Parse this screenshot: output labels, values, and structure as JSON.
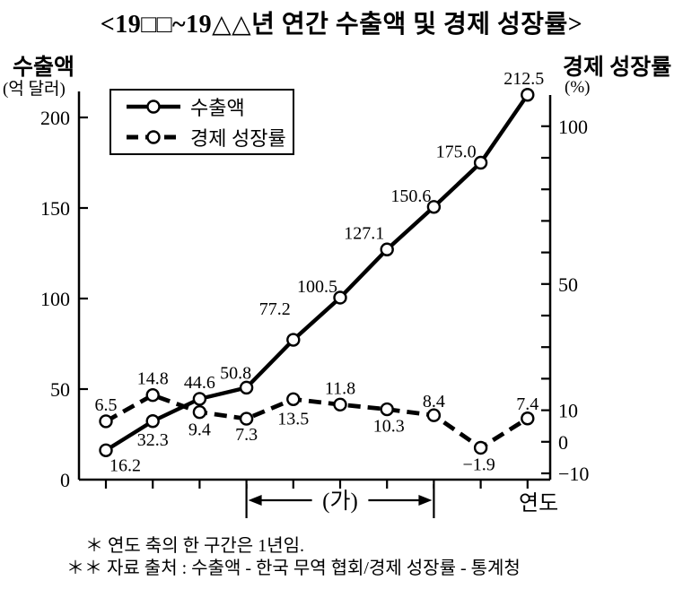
{
  "figure": {
    "title": "<19□□~19△△년 연간 수출액 및 경제 성장률>",
    "footnotes": [
      "＊ 연도 축의 한 구간은 1년임.",
      "＊＊ 자료 출처 : 수출액 - 한국 무역 협회/경제 성장률 - 통계청"
    ]
  },
  "chart_data": {
    "type": "line",
    "title": "19□□~19△△년 연간 수출액 및 경제 성장률",
    "x_axis": {
      "label": "연도",
      "tick_count": 10,
      "tick_labels": [],
      "interval_note": "한 구간은 1년",
      "annotation": {
        "text": "(가)",
        "from_tick": 4,
        "to_tick": 8
      }
    },
    "left_axis": {
      "label": "수출액",
      "unit": "(억 달러)",
      "ticks": [
        0,
        50,
        100,
        150,
        200
      ],
      "range": [
        0,
        215
      ]
    },
    "right_axis": {
      "label": "경제 성장률",
      "unit": "(%)",
      "tick_step": 10,
      "range": [
        -10,
        100
      ],
      "labeled_ticks": [
        100,
        50,
        10,
        0,
        -10
      ]
    },
    "legend": {
      "position": "top-left-inside",
      "entries": [
        "수출액",
        "경제 성장률"
      ]
    },
    "grid": false,
    "series": [
      {
        "name": "수출액",
        "axis": "left",
        "line": "solid",
        "marker": "circle",
        "values": [
          16.2,
          32.3,
          44.6,
          50.8,
          77.2,
          100.5,
          127.1,
          150.6,
          175.0,
          212.5
        ],
        "labels": [
          "16.2",
          "32.3",
          "44.6",
          "50.8",
          "77.2",
          "100.5",
          "127.1",
          "150.6",
          "175.0",
          "212.5"
        ],
        "label_layout": [
          [
            4,
            23,
            "s"
          ],
          [
            0,
            27,
            "m"
          ],
          [
            0,
            -12,
            "m"
          ],
          [
            -12,
            -10,
            "m"
          ],
          [
            0,
            -28,
            "e"
          ],
          [
            0,
            -6,
            "e"
          ],
          [
            0,
            -12,
            "e"
          ],
          [
            0,
            -6,
            "e"
          ],
          [
            -2,
            -6,
            "e"
          ],
          [
            -4,
            -12,
            "m"
          ]
        ]
      },
      {
        "name": "경제 성장률",
        "axis": "right",
        "line": "dashed",
        "marker": "circle",
        "values": [
          6.5,
          14.8,
          9.4,
          7.3,
          13.5,
          11.8,
          10.3,
          8.4,
          -1.9,
          7.4
        ],
        "labels": [
          "6.5",
          "14.8",
          "9.4",
          "7.3",
          "13.5",
          "11.8",
          "10.3",
          "8.4",
          "−1.9",
          "7.4"
        ],
        "label_layout": [
          [
            0,
            -12,
            "m"
          ],
          [
            0,
            -12,
            "m"
          ],
          [
            0,
            26,
            "m"
          ],
          [
            0,
            24,
            "m"
          ],
          [
            0,
            28,
            "m"
          ],
          [
            0,
            -12,
            "m"
          ],
          [
            2,
            25,
            "m"
          ],
          [
            0,
            -9,
            "m"
          ],
          [
            -2,
            25,
            "m"
          ],
          [
            0,
            -10,
            "m"
          ]
        ]
      }
    ]
  }
}
